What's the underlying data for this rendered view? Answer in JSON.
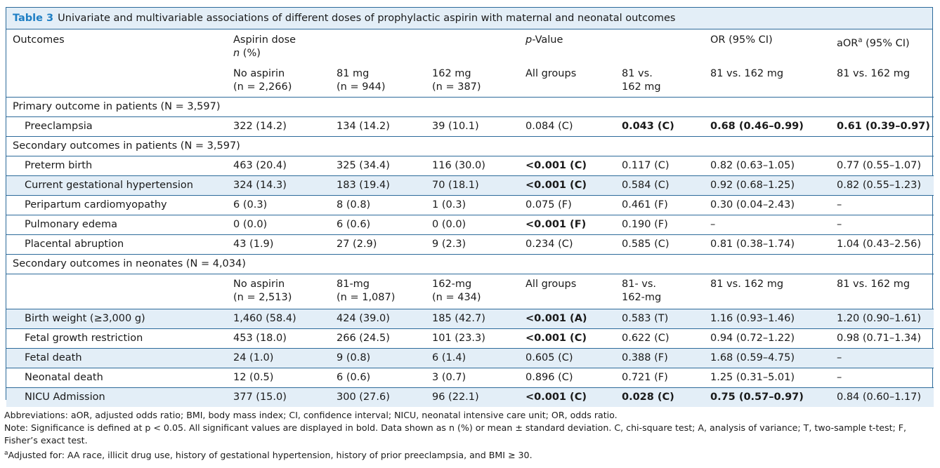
{
  "table": {
    "label": "Table 3",
    "title": "Univariate and multivariable associations of different doses of prophylactic aspirin with maternal and neonatal outcomes",
    "header": {
      "outcomes": "Outcomes",
      "dose_group": "Aspirin dose",
      "n_pct_n": "n",
      "n_pct_rest": " (%)",
      "pvalue_p": "p",
      "pvalue_rest": "-Value",
      "or": "OR (95% CI)",
      "aor": "aOR",
      "aor_sup": "a",
      "aor_rest": " (95% CI)",
      "sub": {
        "no_aspirin": "No aspirin",
        "no_aspirin_n": "(n = 2,266)",
        "mg81": "81 mg",
        "mg81_n": "(n = 944)",
        "mg162": "162 mg",
        "mg162_n": "(n = 387)",
        "all_groups": "All groups",
        "vs_line1": "81 vs.",
        "vs_line2": "162 mg",
        "or_cmp": "81 vs. 162 mg",
        "aor_cmp": "81 vs. 162 mg"
      }
    },
    "sections": [
      {
        "title": "Primary outcome in patients (N = 3,597)",
        "rows": [
          {
            "outcome": "Preeclampsia",
            "no": "322 (14.2)",
            "a81": "134 (14.2)",
            "a162": "39 (10.1)",
            "p_all": "0.084 (C)",
            "p_81v162": "0.043 (C)",
            "or": "0.68 (0.46–0.99)",
            "aor": "0.61 (0.39–0.97)",
            "bold": [
              false,
              true,
              true,
              true
            ],
            "shaded": false
          }
        ]
      },
      {
        "title": "Secondary outcomes in patients (N = 3,597)",
        "rows": [
          {
            "outcome": "Preterm birth",
            "no": "463 (20.4)",
            "a81": "325 (34.4)",
            "a162": "116 (30.0)",
            "p_all": "<0.001 (C)",
            "p_81v162": "0.117 (C)",
            "or": "0.82 (0.63–1.05)",
            "aor": "0.77 (0.55–1.07)",
            "bold": [
              true,
              false,
              false,
              false
            ],
            "shaded": false
          },
          {
            "outcome": "Current gestational hypertension",
            "no": "324 (14.3)",
            "a81": "183 (19.4)",
            "a162": "70 (18.1)",
            "p_all": "<0.001 (C)",
            "p_81v162": "0.584 (C)",
            "or": "0.92 (0.68–1.25)",
            "aor": "0.82 (0.55–1.23)",
            "bold": [
              true,
              false,
              false,
              false
            ],
            "shaded": true
          },
          {
            "outcome": "Peripartum cardiomyopathy",
            "no": "6 (0.3)",
            "a81": "8 (0.8)",
            "a162": "1 (0.3)",
            "p_all": "0.075 (F)",
            "p_81v162": "0.461 (F)",
            "or": "0.30 (0.04–2.43)",
            "aor": "–",
            "bold": [
              false,
              false,
              false,
              false
            ],
            "shaded": false
          },
          {
            "outcome": "Pulmonary edema",
            "no": "0 (0.0)",
            "a81": "6 (0.6)",
            "a162": "0 (0.0)",
            "p_all": "<0.001 (F)",
            "p_81v162": "0.190 (F)",
            "or": "–",
            "aor": "–",
            "bold": [
              true,
              false,
              false,
              false
            ],
            "shaded": false
          },
          {
            "outcome": "Placental abruption",
            "no": "43 (1.9)",
            "a81": "27 (2.9)",
            "a162": "9 (2.3)",
            "p_all": "0.234 (C)",
            "p_81v162": "0.585 (C)",
            "or": "0.81 (0.38–1.74)",
            "aor": "1.04 (0.43–2.56)",
            "bold": [
              false,
              false,
              false,
              false
            ],
            "shaded": false
          }
        ]
      },
      {
        "title": "Secondary outcomes in neonates (N = 4,034)",
        "subheader": {
          "no": "No aspirin",
          "no_n": "(n = 2,513)",
          "a81": "81-mg",
          "a81_n": "(n = 1,087)",
          "a162": "162-mg",
          "a162_n": "(n = 434)",
          "p_all": "All groups",
          "vs1": "81- vs.",
          "vs2": "162-mg",
          "or": "81 vs. 162 mg",
          "aor": "81 vs. 162 mg"
        },
        "rows": [
          {
            "outcome": "Birth weight (≥3,000 g)",
            "no": "1,460 (58.4)",
            "a81": "424 (39.0)",
            "a162": "185 (42.7)",
            "p_all": "<0.001 (A)",
            "p_81v162": "0.583 (T)",
            "or": "1.16 (0.93–1.46)",
            "aor": "1.20 (0.90–1.61)",
            "bold": [
              true,
              false,
              false,
              false
            ],
            "shaded": true
          },
          {
            "outcome": "Fetal growth restriction",
            "no": "453 (18.0)",
            "a81": "266 (24.5)",
            "a162": "101 (23.3)",
            "p_all": "<0.001 (C)",
            "p_81v162": "0.622 (C)",
            "or": "0.94 (0.72–1.22)",
            "aor": "0.98 (0.71–1.34)",
            "bold": [
              true,
              false,
              false,
              false
            ],
            "shaded": false
          },
          {
            "outcome": "Fetal death",
            "no": "24 (1.0)",
            "a81": "9 (0.8)",
            "a162": "6 (1.4)",
            "p_all": "0.605 (C)",
            "p_81v162": "0.388 (F)",
            "or": "1.68 (0.59–4.75)",
            "aor": "–",
            "bold": [
              false,
              false,
              false,
              false
            ],
            "shaded": true
          },
          {
            "outcome": "Neonatal death",
            "no": "12 (0.5)",
            "a81": "6 (0.6)",
            "a162": "3 (0.7)",
            "p_all": "0.896 (C)",
            "p_81v162": "0.721 (F)",
            "or": "1.25 (0.31–5.01)",
            "aor": "–",
            "bold": [
              false,
              false,
              false,
              false
            ],
            "shaded": false
          },
          {
            "outcome": "NICU Admission",
            "no": "377 (15.0)",
            "a81": "300 (27.6)",
            "a162": "96 (22.1)",
            "p_all": "<0.001 (C)",
            "p_81v162": "0.028 (C)",
            "or": "0.75 (0.57–0.97)",
            "aor": "0.84 (0.60–1.17)",
            "bold": [
              true,
              true,
              true,
              false
            ],
            "shaded": true
          }
        ]
      }
    ]
  },
  "notes": {
    "abbreviations": "Abbreviations: aOR, adjusted odds ratio; BMI, body mass index; CI, confidence interval; NICU, neonatal intensive care unit; OR, odds ratio.",
    "note": "Note: Significance is defined at p < 0.05. All significant values are displayed in bold. Data shown as n (%) or mean ± standard deviation. C, chi-square test; A, analysis of variance; T, two-sample t-test; F, Fisher’s exact test.",
    "footnote_mark": "a",
    "footnote": "Adjusted for: AA race, illicit drug use, history of gestational hypertension, history of prior preeclampsia, and BMI ≥ 30."
  }
}
